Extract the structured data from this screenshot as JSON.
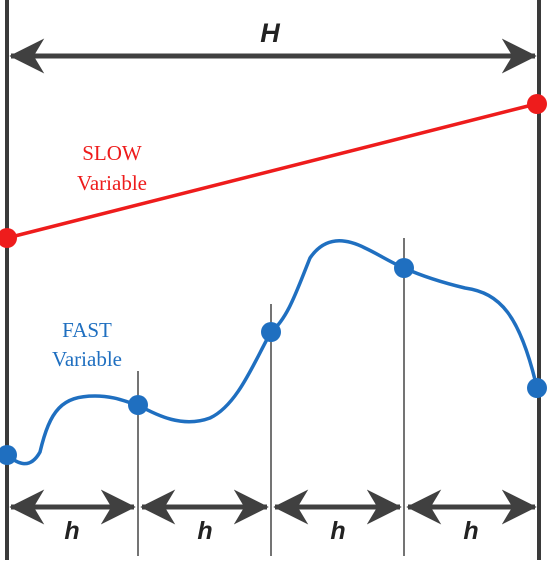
{
  "labels": {
    "H": "H",
    "h": "h",
    "slow_line1": "SLOW",
    "slow_line2": "Variable",
    "fast_line1": "FAST",
    "fast_line2": "Variable"
  },
  "colors": {
    "frame": "#3a3a3a",
    "arrow": "#404040",
    "slow": "#ee1c1c",
    "fast": "#1f6fc0",
    "thin_line": "#2a2a2a"
  },
  "icons": {
    "double_arrow": "double-headed-arrow-icon",
    "node": "filled-circle-icon"
  }
}
